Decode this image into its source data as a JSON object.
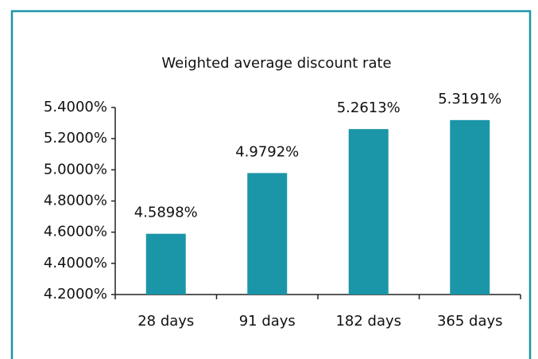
{
  "chart_data": {
    "type": "bar",
    "title": "Weighted average discount rate",
    "categories": [
      "28 days",
      "91 days",
      "182 days",
      "365 days"
    ],
    "values": [
      4.5898,
      4.9792,
      5.2613,
      5.3191
    ],
    "value_labels": [
      "4.5898%",
      "4.9792%",
      "5.2613%",
      "5.3191%"
    ],
    "color": "#1b95a8",
    "ylim": [
      4.2,
      5.4
    ],
    "yticks": [
      {
        "value": 4.2,
        "label": "4.2000%"
      },
      {
        "value": 4.4,
        "label": "4.4000%"
      },
      {
        "value": 4.6,
        "label": "4.6000%"
      },
      {
        "value": 4.8,
        "label": "4.8000%"
      },
      {
        "value": 5.0,
        "label": "5.0000%"
      },
      {
        "value": 5.2,
        "label": "5.2000%"
      },
      {
        "value": 5.4,
        "label": "5.4000%"
      }
    ]
  }
}
